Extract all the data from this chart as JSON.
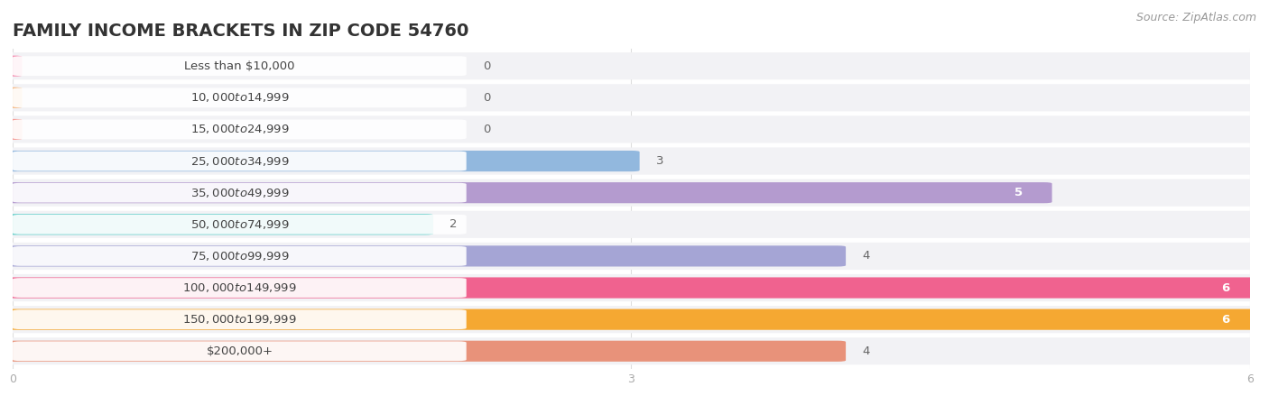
{
  "title": "FAMILY INCOME BRACKETS IN ZIP CODE 54760",
  "source": "Source: ZipAtlas.com",
  "categories": [
    "Less than $10,000",
    "$10,000 to $14,999",
    "$15,000 to $24,999",
    "$25,000 to $34,999",
    "$35,000 to $49,999",
    "$50,000 to $74,999",
    "$75,000 to $99,999",
    "$100,000 to $149,999",
    "$150,000 to $199,999",
    "$200,000+"
  ],
  "values": [
    0,
    0,
    0,
    3,
    5,
    2,
    4,
    6,
    6,
    4
  ],
  "bar_colors": [
    "#f590b2",
    "#f6ba84",
    "#f5a09a",
    "#92b8de",
    "#b49bcf",
    "#5ecec8",
    "#a5a5d5",
    "#f0628f",
    "#f5a832",
    "#e8927a"
  ],
  "row_bg_color": "#f2f2f5",
  "label_box_color": "#ffffff",
  "xlim_max": 6,
  "xticks": [
    0,
    3,
    6
  ],
  "background_color": "#ffffff",
  "title_color": "#333333",
  "source_color": "#999999",
  "tick_color": "#aaaaaa",
  "grid_color": "#dddddd",
  "label_text_color": "#444444",
  "value_color_dark": "#666666",
  "value_color_light": "#ffffff",
  "title_fontsize": 14,
  "source_fontsize": 9,
  "label_fontsize": 9.5,
  "value_fontsize": 9.5
}
